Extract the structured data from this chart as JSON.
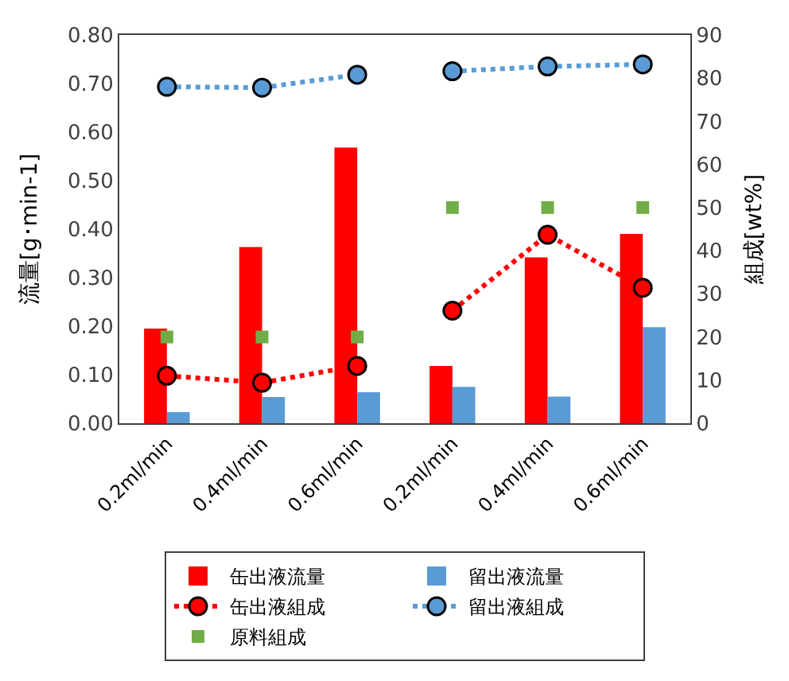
{
  "chart_data": {
    "type": "bar",
    "ylabel": "流量[g･min-1]",
    "y2label": "組成[wt%]",
    "categories": [
      "0.2ml/min",
      "0.4ml/min",
      "0.6ml/min",
      "0.2ml/min",
      "0.4ml/min",
      "0.6ml/min"
    ],
    "series": [
      {
        "name": "缶出液流量",
        "color": "#ff0000",
        "values": [
          0.195,
          0.363,
          0.568,
          0.118,
          0.342,
          0.39
        ]
      },
      {
        "name": "留出液流量",
        "color": "#5b9bd5",
        "values": [
          0.023,
          0.054,
          0.064,
          0.075,
          0.055,
          0.198
        ]
      },
      {
        "name": "缶出液組成",
        "type": "line",
        "axis": "y2",
        "color": "#ff0000",
        "marker": "circle",
        "line_style": "dotted",
        "values": [
          11.0,
          9.4,
          13.3,
          null,
          null,
          null
        ]
      },
      {
        "type": "line",
        "axis": "y2",
        "color": "#ff0000",
        "marker": "circle",
        "line_style": "dotted",
        "values": [
          null,
          null,
          null,
          26.1,
          43.7,
          31.4
        ]
      },
      {
        "name": "留出液組成",
        "type": "line",
        "axis": "y2",
        "color": "#5b9bd5",
        "marker": "circle",
        "line_style": "dotted",
        "values": [
          78.0,
          77.8,
          80.8,
          null,
          null,
          null
        ]
      },
      {
        "type": "line",
        "axis": "y2",
        "color": "#5b9bd5",
        "marker": "circle",
        "line_style": "dotted",
        "values": [
          null,
          null,
          null,
          81.6,
          82.7,
          83.2
        ]
      },
      {
        "name": "原料組成",
        "type": "scatter",
        "axis": "y2",
        "color": "#70ad47",
        "marker": "square",
        "values": [
          20,
          20,
          20,
          50,
          50,
          50
        ]
      }
    ],
    "ylim": [
      0,
      0.8
    ],
    "yticks": [
      {
        "value": 0,
        "label": "0.00"
      },
      {
        "value": 0.1,
        "label": "0.10"
      },
      {
        "value": 0.2,
        "label": "0.20"
      },
      {
        "value": 0.3,
        "label": "0.30"
      },
      {
        "value": 0.4,
        "label": "0.40"
      },
      {
        "value": 0.5,
        "label": "0.50"
      },
      {
        "value": 0.6,
        "label": "0.60"
      },
      {
        "value": 0.7,
        "label": "0.70"
      },
      {
        "value": 0.8,
        "label": "0.80"
      }
    ],
    "y2lim": [
      0,
      90
    ],
    "y2ticks": [
      0,
      10,
      20,
      30,
      40,
      50,
      60,
      70,
      80,
      90
    ],
    "legend": "bottom"
  }
}
